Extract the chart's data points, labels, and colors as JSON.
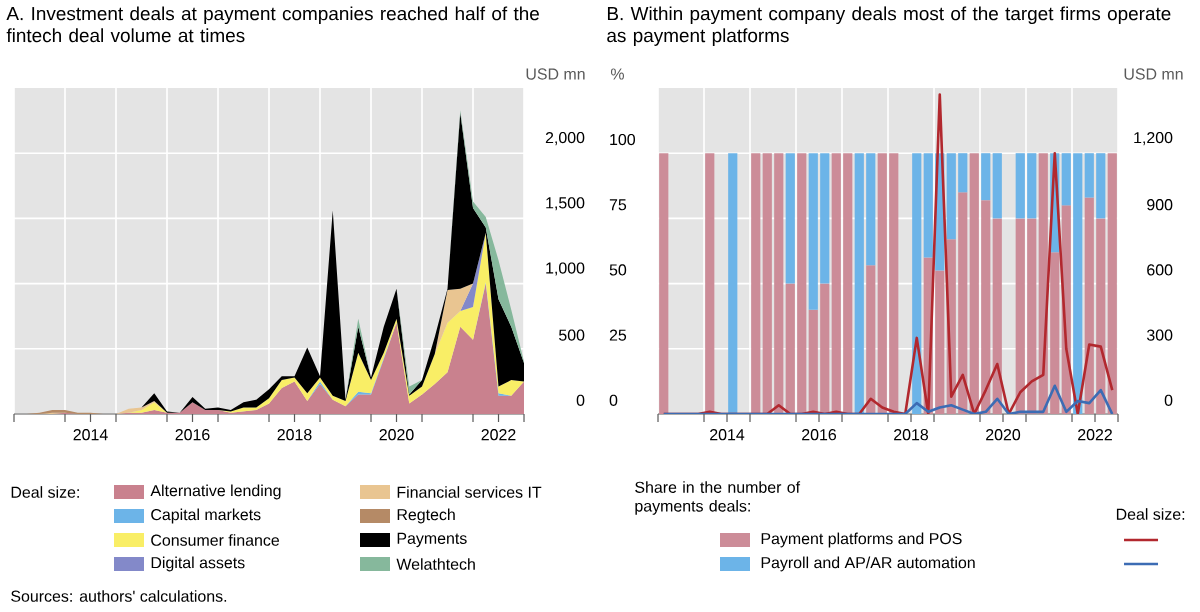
{
  "chart_data": [
    {
      "type": "area",
      "title": "A. Investment deals at payment companies reached half of the fintech deal volume at times",
      "ylabel": "USD mn",
      "legend_title": "Deal size:",
      "annotations": [
        "Sources: authors' calculations."
      ],
      "stacked": true,
      "grid": true,
      "legend": "bottom",
      "xlim": [
        2013,
        2023
      ],
      "ylim": [
        0,
        2500
      ],
      "xticks": [
        {
          "value": 2013,
          "label": null
        },
        {
          "value": 2014,
          "label": null
        },
        {
          "value": 2015,
          "label": null
        },
        {
          "value": 2016,
          "label": null
        },
        {
          "value": 2017,
          "label": null
        },
        {
          "value": 2018,
          "label": null
        },
        {
          "value": 2019,
          "label": null
        },
        {
          "value": 2020,
          "label": null
        },
        {
          "value": 2021,
          "label": null
        },
        {
          "value": 2022,
          "label": null
        },
        {
          "value": 2023,
          "label": null
        },
        {
          "value": 2014.5,
          "label": "2014"
        },
        {
          "value": 2016.5,
          "label": "2016"
        },
        {
          "value": 2018.5,
          "label": "2018"
        },
        {
          "value": 2020.5,
          "label": "2020"
        },
        {
          "value": 2022.5,
          "label": "2022"
        }
      ],
      "yticks": [
        0,
        500,
        {
          "value": 1000,
          "label": "1,000"
        },
        {
          "value": 1500,
          "label": "1,500"
        },
        {
          "value": 2000,
          "label": "2,000"
        }
      ],
      "x": [
        2013.25,
        2013.5,
        2013.75,
        2014,
        2014.25,
        2014.5,
        2014.75,
        2015,
        2015.25,
        2015.5,
        2015.75,
        2016,
        2016.25,
        2016.5,
        2016.75,
        2017,
        2017.25,
        2017.5,
        2017.75,
        2018,
        2018.25,
        2018.5,
        2018.75,
        2019,
        2019.25,
        2019.5,
        2019.75,
        2020,
        2020.25,
        2020.5,
        2020.75,
        2021,
        2021.25,
        2021.5,
        2021.75,
        2022,
        2022.25,
        2022.5,
        2022.75,
        2023
      ],
      "series": [
        {
          "name": "Alternative lending",
          "color": "#c9818e",
          "values": [
            0,
            0,
            0,
            10,
            0,
            0,
            0,
            0,
            10,
            10,
            30,
            10,
            10,
            90,
            30,
            30,
            10,
            20,
            30,
            80,
            200,
            250,
            100,
            230,
            110,
            60,
            150,
            150,
            420,
            700,
            80,
            150,
            230,
            320,
            670,
            570,
            1000,
            140,
            140,
            250
          ]
        },
        {
          "name": "Capital markets",
          "color": "#6cb4e8",
          "values": [
            null,
            null,
            null,
            null,
            null,
            null,
            null,
            null,
            null,
            null,
            null,
            null,
            null,
            null,
            null,
            null,
            null,
            null,
            null,
            null,
            null,
            null,
            0,
            20,
            0,
            0,
            20,
            10,
            10,
            0,
            null,
            null,
            null,
            null,
            null,
            0,
            10,
            20,
            0,
            null
          ]
        },
        {
          "name": "Consumer finance",
          "color": "#f9ee66",
          "values": [
            0,
            0,
            0,
            0,
            0,
            0,
            0,
            0,
            0,
            20,
            60,
            0,
            0,
            0,
            0,
            0,
            10,
            30,
            20,
            40,
            60,
            30,
            60,
            30,
            30,
            40,
            300,
            100,
            40,
            30,
            60,
            60,
            230,
            380,
            120,
            250,
            380,
            50,
            120,
            0
          ]
        },
        {
          "name": "Digital assets",
          "color": "#8389c9",
          "values": [
            null,
            null,
            null,
            null,
            null,
            null,
            null,
            null,
            null,
            null,
            null,
            null,
            null,
            null,
            null,
            null,
            null,
            null,
            null,
            null,
            null,
            null,
            null,
            null,
            null,
            null,
            null,
            null,
            null,
            null,
            null,
            null,
            null,
            null,
            0,
            180,
            0,
            null,
            null,
            null
          ]
        },
        {
          "name": "Financial services IT",
          "color": "#e9c591",
          "values": [
            0,
            0,
            10,
            0,
            null,
            null,
            null,
            0,
            30,
            20,
            10,
            0,
            null,
            null,
            null,
            null,
            null,
            null,
            null,
            null,
            null,
            null,
            null,
            null,
            null,
            null,
            null,
            null,
            null,
            null,
            null,
            null,
            0,
            250,
            170,
            0,
            null,
            null,
            null,
            null
          ]
        },
        {
          "name": "Regtech",
          "color": "#b58a66",
          "values": [
            0,
            10,
            20,
            20,
            10,
            10,
            0,
            null,
            null,
            null,
            null,
            null,
            null,
            null,
            null,
            null,
            null,
            null,
            null,
            null,
            null,
            null,
            null,
            null,
            null,
            null,
            null,
            null,
            null,
            null,
            null,
            null,
            null,
            null,
            null,
            null,
            null,
            null,
            null,
            null
          ]
        },
        {
          "name": "Payments",
          "color": "#000000",
          "values": [
            0,
            0,
            0,
            0,
            0,
            0,
            0,
            0,
            0,
            0,
            60,
            10,
            0,
            40,
            10,
            20,
            10,
            40,
            60,
            70,
            30,
            10,
            350,
            10,
            1420,
            10,
            200,
            20,
            200,
            230,
            10,
            50,
            130,
            10,
            1350,
            580,
            40,
            670,
            410,
            140
          ]
        },
        {
          "name": "Welathtech",
          "color": "#86b89c",
          "values": [
            null,
            null,
            null,
            null,
            null,
            null,
            null,
            null,
            null,
            null,
            null,
            null,
            null,
            null,
            null,
            null,
            null,
            null,
            null,
            null,
            null,
            null,
            null,
            null,
            null,
            0,
            60,
            0,
            null,
            0,
            60,
            0,
            null,
            0,
            20,
            50,
            80,
            300,
            130,
            10
          ]
        }
      ]
    },
    {
      "type": "bar",
      "title": "B. Within payment company deals most of the target firms operate as payment platforms",
      "ylabel": "%",
      "y2label": "USD mn",
      "legend_title": "Share in the number of payments deals:",
      "annotations": [
        "Deal size:"
      ],
      "stacked": true,
      "grid": true,
      "legend": "bottom",
      "xlim": [
        2013,
        2023
      ],
      "ylim": [
        0,
        125
      ],
      "y2lim": [
        0,
        1500
      ],
      "xticks": [
        {
          "value": 2013,
          "label": null
        },
        {
          "value": 2014,
          "label": null
        },
        {
          "value": 2015,
          "label": null
        },
        {
          "value": 2016,
          "label": null
        },
        {
          "value": 2017,
          "label": null
        },
        {
          "value": 2018,
          "label": null
        },
        {
          "value": 2019,
          "label": null
        },
        {
          "value": 2020,
          "label": null
        },
        {
          "value": 2021,
          "label": null
        },
        {
          "value": 2022,
          "label": null
        },
        {
          "value": 2023,
          "label": null
        },
        {
          "value": 2014.5,
          "label": "2014"
        },
        {
          "value": 2016.5,
          "label": "2016"
        },
        {
          "value": 2018.5,
          "label": "2018"
        },
        {
          "value": 2020.5,
          "label": "2020"
        },
        {
          "value": 2022.5,
          "label": "2022"
        }
      ],
      "yticks": [
        0,
        25,
        50,
        75,
        100
      ],
      "y2ticks": [
        0,
        300,
        600,
        900,
        {
          "value": 1200,
          "label": "1,200"
        }
      ],
      "x": [
        2013.125,
        2013.375,
        2013.625,
        2013.875,
        2014.125,
        2014.375,
        2014.625,
        2014.875,
        2015.125,
        2015.375,
        2015.625,
        2015.875,
        2016.125,
        2016.375,
        2016.625,
        2016.875,
        2017.125,
        2017.375,
        2017.625,
        2017.875,
        2018.125,
        2018.375,
        2018.625,
        2018.875,
        2019.125,
        2019.375,
        2019.625,
        2019.875,
        2020.125,
        2020.375,
        2020.625,
        2020.875,
        2021.125,
        2021.375,
        2021.625,
        2021.875,
        2022.125,
        2022.375,
        2022.625,
        2022.875
      ],
      "series": [
        {
          "name": "Payment platforms and POS",
          "color": "#cc8c98",
          "values": [
            100,
            null,
            null,
            null,
            100,
            null,
            null,
            null,
            100,
            100,
            100,
            50,
            100,
            40,
            50,
            100,
            100,
            null,
            57,
            100,
            100,
            null,
            null,
            60,
            55,
            67,
            85,
            100,
            82,
            75,
            null,
            75,
            75,
            100,
            62,
            80,
            null,
            83,
            75,
            100
          ]
        },
        {
          "name": "Payroll and AP/AR automation",
          "color": "#6cb4e8",
          "values": [
            null,
            null,
            null,
            null,
            null,
            null,
            100,
            null,
            null,
            null,
            null,
            50,
            null,
            60,
            50,
            null,
            null,
            100,
            43,
            null,
            null,
            null,
            100,
            40,
            45,
            33,
            15,
            null,
            18,
            25,
            null,
            25,
            25,
            null,
            38,
            20,
            100,
            17,
            25,
            null
          ]
        },
        {
          "type": "line",
          "axis": "y2",
          "color": "#b2282e",
          "values": [
            0,
            0,
            0,
            0,
            10,
            0,
            0,
            0,
            0,
            0,
            40,
            0,
            0,
            10,
            0,
            10,
            0,
            0,
            70,
            30,
            10,
            0,
            350,
            0,
            1470,
            80,
            180,
            0,
            110,
            230,
            0,
            100,
            150,
            180,
            1200,
            300,
            0,
            320,
            310,
            110
          ]
        },
        {
          "type": "line",
          "axis": "y2",
          "color": "#3c6cb4",
          "values": [
            0,
            0,
            0,
            0,
            0,
            0,
            0,
            0,
            0,
            0,
            0,
            0,
            0,
            0,
            0,
            0,
            0,
            0,
            0,
            0,
            0,
            0,
            50,
            10,
            30,
            40,
            20,
            0,
            10,
            70,
            0,
            10,
            10,
            10,
            130,
            10,
            60,
            50,
            110,
            0
          ]
        }
      ]
    }
  ]
}
